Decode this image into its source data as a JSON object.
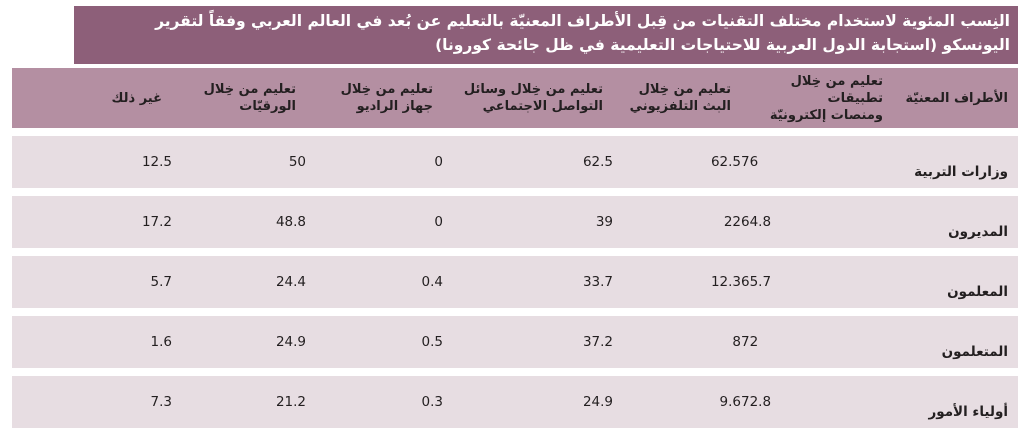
{
  "title": {
    "line1": "النِسب المئوية لاستخدام مختلف التقنيات من قِبل الأطراف المعنيّة بالتعليم عن بُعد في العالم العربي وفقاً لتقرير",
    "line2": "اليونسكو (استجابة الدول العربية للاحتياجات التعليمية في ظل جائحة كورونا)"
  },
  "headers": {
    "entity": "الأطراف المعنيّة",
    "apps": [
      "تعليم من خِلال تطبيقات",
      "ومنصات إلكترونيّة"
    ],
    "tv": [
      "تعليم من خِلال",
      "البث التلفزيوني"
    ],
    "social": [
      "تعليم من خِلال وسائل",
      "التواصل الاجتماعي"
    ],
    "radio": [
      "تعليم من خِلال",
      "جهاز الراديو"
    ],
    "paper": [
      "تعليم من خِلال",
      "الورقيّات"
    ],
    "other": "غير ذلك"
  },
  "rows": [
    {
      "entity": "وزارات التربية",
      "apps": "76",
      "tv": "62.5",
      "social": "62.5",
      "radio": "0",
      "paper": "50",
      "other": "12.5"
    },
    {
      "entity": "المديرون",
      "apps": "64.8",
      "tv": "22",
      "social": "39",
      "radio": "0",
      "paper": "48.8",
      "other": "17.2"
    },
    {
      "entity": "المعلمون",
      "apps": "65.7",
      "tv": "12.3",
      "social": "33.7",
      "radio": "0.4",
      "paper": "24.4",
      "other": "5.7"
    },
    {
      "entity": "المتعلمون",
      "apps": "72",
      "tv": "8",
      "social": "37.2",
      "radio": "0.5",
      "paper": "24.9",
      "other": "1.6"
    },
    {
      "entity": "أولياء الأمور",
      "apps": "72.8",
      "tv": "9.6",
      "social": "24.9",
      "radio": "0.3",
      "paper": "21.2",
      "other": "7.3"
    }
  ],
  "colors": {
    "title_bg": "#8d5f79",
    "header_bg": "#b48fa2",
    "row_bg": "#e7dde2"
  }
}
